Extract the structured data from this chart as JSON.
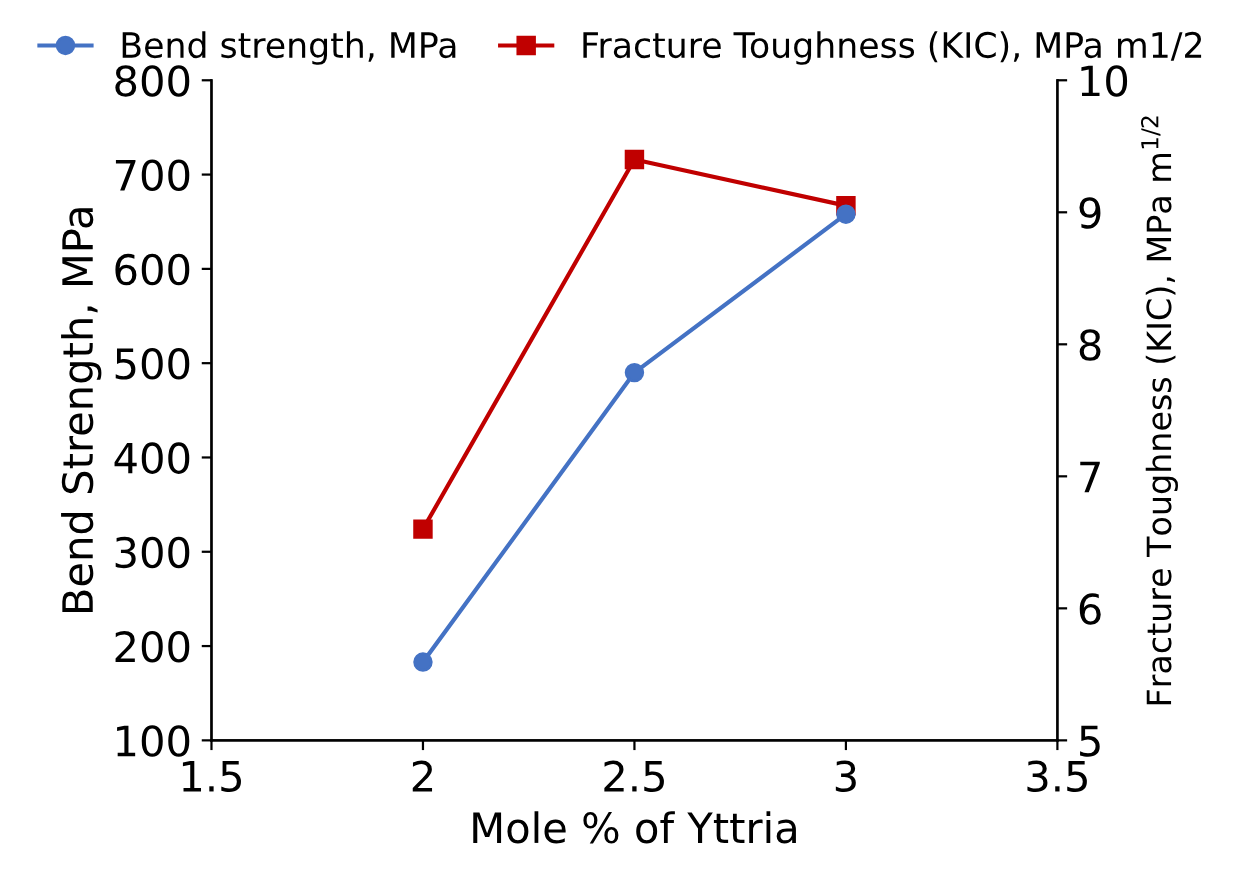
{
  "chart_data": {
    "type": "line",
    "xlabel": "Mole % of Yttria",
    "ylabel": "Bend Strength, MPa",
    "y2label": "Fracture Toughness (KIC), MPa m$^{1/2}$",
    "x": [
      2,
      2.5,
      3
    ],
    "series": [
      {
        "name": "Bend strength, MPa",
        "color": "#4472c4",
        "marker": "circle",
        "values": [
          183,
          490,
          658
        ]
      },
      {
        "name": "Fracture Toughness (KIC), MPa m1/2",
        "color": "#c00000",
        "marker": "square",
        "axis": "y2",
        "values": [
          6.6,
          9.4,
          9.05
        ]
      }
    ],
    "xlim": [
      1.5,
      3.5
    ],
    "xticks": [
      1.5,
      2,
      2.5,
      3,
      3.5
    ],
    "ylim": [
      100,
      800
    ],
    "yticks": [
      100,
      200,
      300,
      400,
      500,
      600,
      700,
      800
    ],
    "y2lim": [
      5,
      10
    ],
    "y2ticks": [
      5,
      6,
      7,
      8,
      9,
      10
    ],
    "grid": false,
    "legend": "top",
    "line_style": "solid"
  }
}
